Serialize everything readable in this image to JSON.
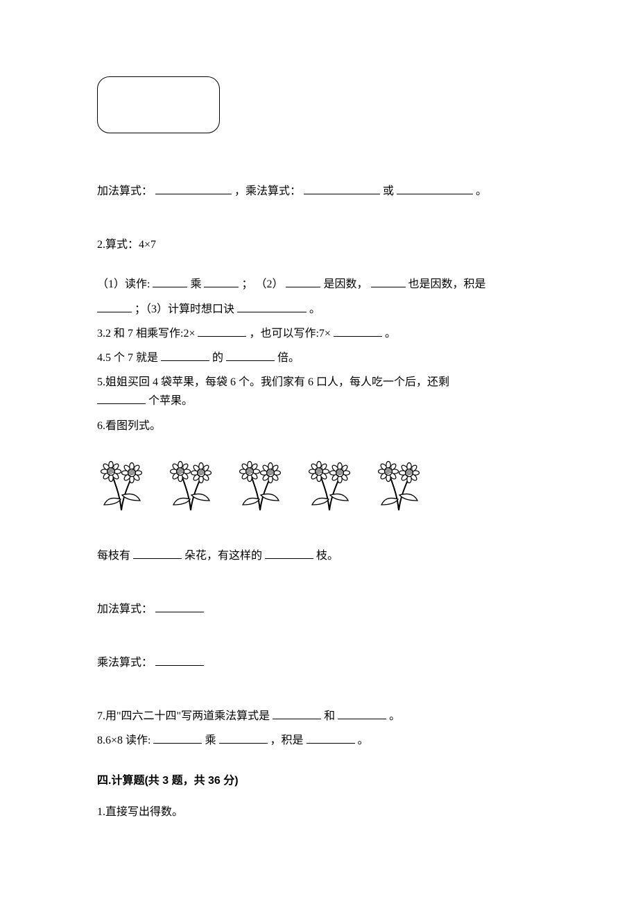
{
  "q1": {
    "line1_a": "加法算式：",
    "line1_b": "，乘法算式：",
    "line1_c": "或",
    "line1_d": "。"
  },
  "q2": {
    "head": "2.算式：4×7",
    "p1_a": "（1）读作:",
    "p1_b": "乘",
    "p1_c": "； （2）",
    "p1_d": "是因数，",
    "p1_e": "也是因数，积是",
    "p2_a": "；（3）计算时想口诀",
    "p2_b": "。"
  },
  "q3": {
    "a": "3.2 和 7 相乘写作:2×",
    "b": "，也可以写作:7×",
    "c": "。"
  },
  "q4": {
    "a": "4.5 个 7 就是",
    "b": "的",
    "c": "倍。"
  },
  "q5": {
    "a": "5.姐姐买回 4 袋苹果，每袋 6 个。我们家有 6 口人，每人吃一个后，还剩",
    "b": "个苹果。"
  },
  "q6": {
    "head": "6.看图列式。",
    "flower_count": 5,
    "line1_a": "每枝有",
    "line1_b": "朵花，有这样的",
    "line1_c": "枝。",
    "line2": "加法算式：",
    "line3": "乘法算式："
  },
  "q7": {
    "a": "7.用\"四六二十四\"写两道乘法算式是",
    "b": "和",
    "c": "。"
  },
  "q8": {
    "a": "8.6×8 读作:",
    "b": "乘",
    "c": "，积是",
    "d": "。"
  },
  "section4": {
    "title": "四.计算题(共 3 题，共 36 分)",
    "q1": "1.直接写出得数。"
  },
  "style": {
    "font_size_pt": 12,
    "text_color": "#000000",
    "background_color": "#ffffff",
    "flower_fill": "#ffffff",
    "flower_stroke": "#000000",
    "flower_hatch": "#000000"
  }
}
